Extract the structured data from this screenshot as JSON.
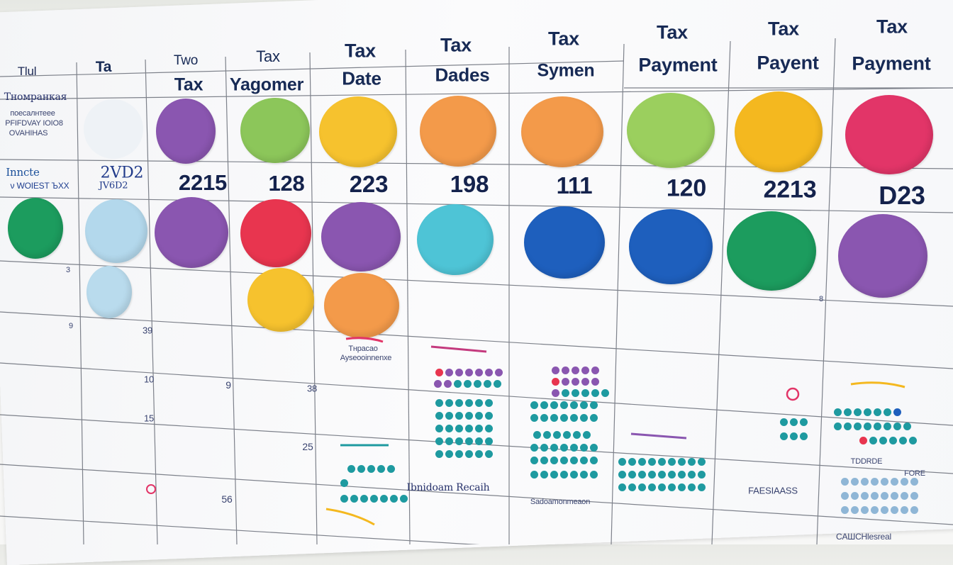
{
  "header_row_top": [
    "Tax",
    "Tax",
    "Tax",
    "Tax",
    "Tax",
    "Tax",
    "Tax"
  ],
  "header_row_left": [
    "Tlul",
    "Ta",
    "Two"
  ],
  "header_row_bottom": [
    "Tax",
    "Yagomer",
    "Date",
    "Dades",
    "Symen",
    "Payment",
    "Payent",
    "Payment"
  ],
  "amounts": [
    "2215",
    "128",
    "223",
    "198",
    "111",
    "120",
    "2213",
    "D23"
  ],
  "side_notes": {
    "title": "Tномранкая",
    "line1": "поесалнтеее",
    "line2": "PFIFDVAY IOIO8",
    "line3": "OVAHIHAS",
    "imote": "Inncte",
    "imote_sub": "ν WOIEST ЪХХ",
    "scrawl": "2VD2",
    "scrawl2": "JV6D2"
  },
  "cell_notes": [
    "Tнрaсao",
    "Ayseooinnenxe",
    "FAESIAASS",
    "Ibnidoam Recaih",
    "Sadoamonmeaon",
    "CAШCHlesreal",
    "TDDRDE",
    "FORE"
  ],
  "row_numbers": [
    "3",
    "39",
    "9",
    "10",
    "25",
    "38",
    "56",
    "9",
    "8",
    "15"
  ],
  "colors": {
    "purple": "#8a56b0",
    "green": "#8cc65a",
    "yellow": "#f6c22e",
    "orange": "#f39a4a",
    "lime": "#9bcf5e",
    "gold": "#f4b81f",
    "pink": "#e23568",
    "emerald": "#1c9c5e",
    "light_blue": "#b3d8ec",
    "red": "#e8354f",
    "teal": "#4ec4d6",
    "blue": "#1e5fbd",
    "ink": "#172a55"
  }
}
